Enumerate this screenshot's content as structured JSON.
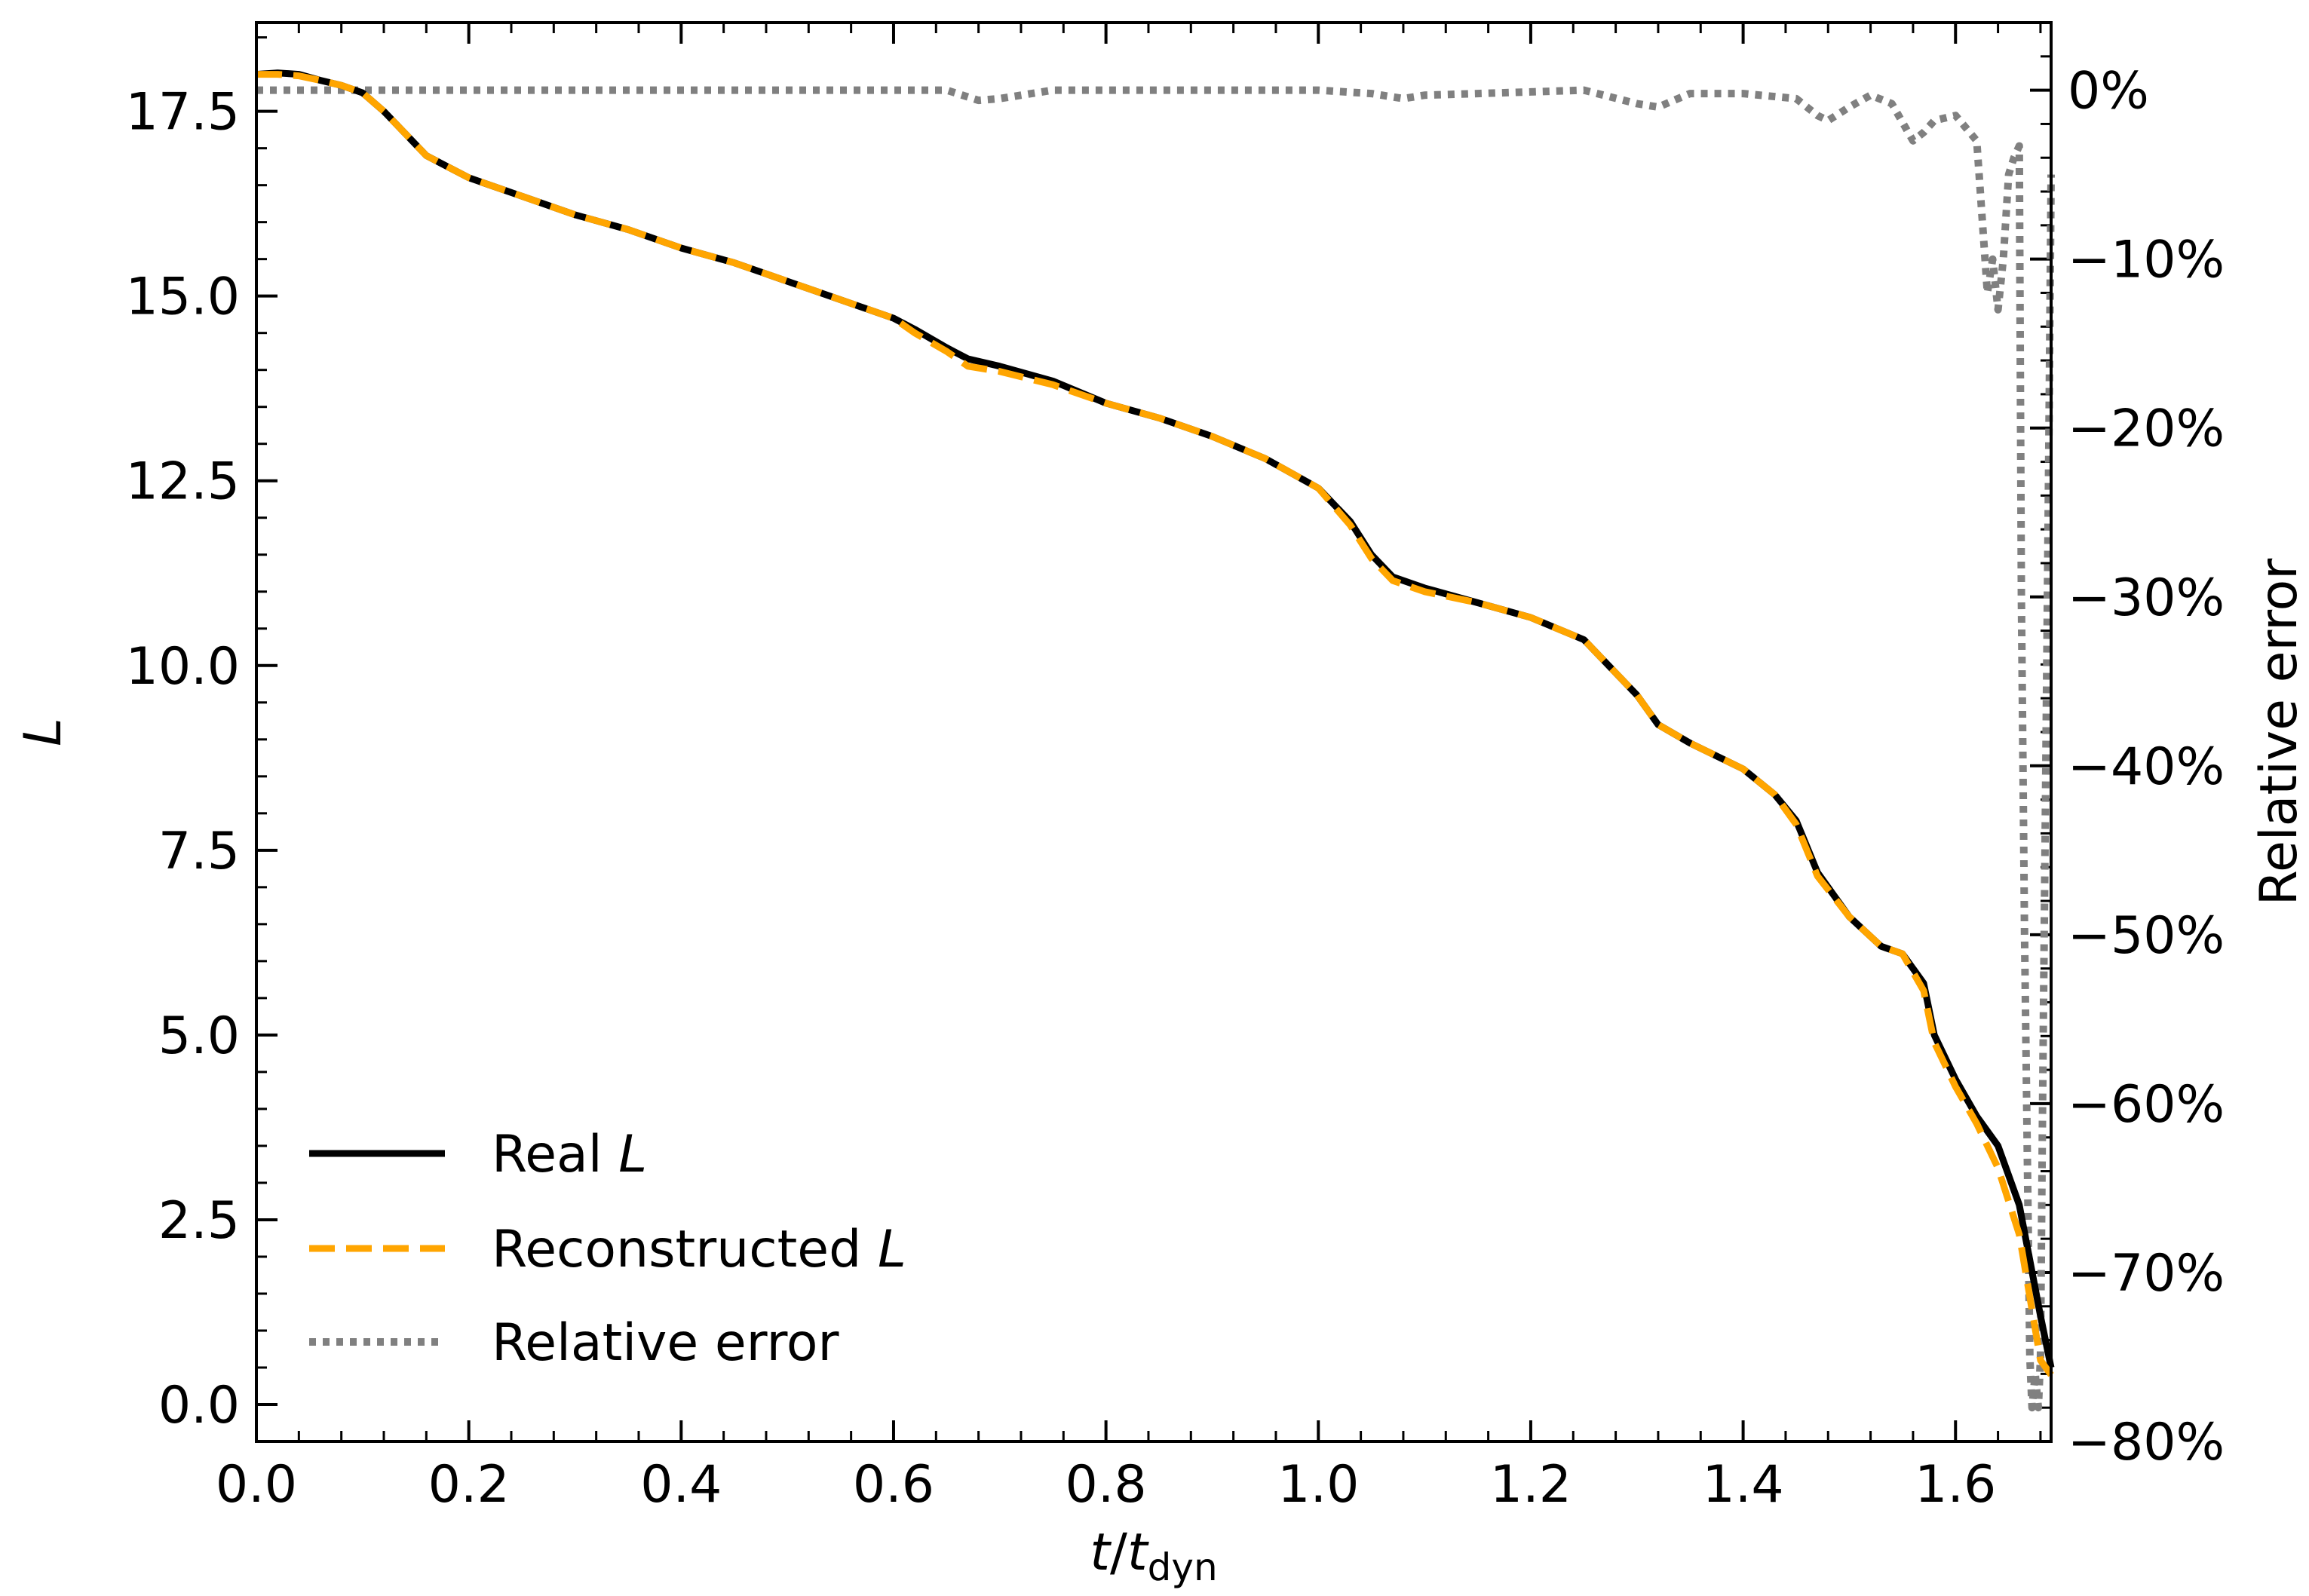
{
  "chart_data": {
    "type": "line",
    "xlabel": {
      "italic": "t",
      "sep": "/",
      "italic2": "t",
      "sub": "dyn"
    },
    "ylabel": "L",
    "y2label": "Relative error",
    "xlim": [
      0.0,
      1.69
    ],
    "ylim": [
      -0.5,
      18.7
    ],
    "y2lim": [
      -0.8,
      0.04
    ],
    "xticks": [
      {
        "value": 0.0,
        "label": "0.0"
      },
      {
        "value": 0.2,
        "label": "0.2"
      },
      {
        "value": 0.4,
        "label": "0.4"
      },
      {
        "value": 0.6,
        "label": "0.6"
      },
      {
        "value": 0.8,
        "label": "0.8"
      },
      {
        "value": 1.0,
        "label": "1.0"
      },
      {
        "value": 1.2,
        "label": "1.2"
      },
      {
        "value": 1.4,
        "label": "1.4"
      },
      {
        "value": 1.6,
        "label": "1.6"
      }
    ],
    "yticks": [
      {
        "value": 0.0,
        "label": "0.0"
      },
      {
        "value": 2.5,
        "label": "2.5"
      },
      {
        "value": 5.0,
        "label": "5.0"
      },
      {
        "value": 7.5,
        "label": "7.5"
      },
      {
        "value": 10.0,
        "label": "10.0"
      },
      {
        "value": 12.5,
        "label": "12.5"
      },
      {
        "value": 15.0,
        "label": "15.0"
      },
      {
        "value": 17.5,
        "label": "17.5"
      }
    ],
    "y2ticks": [
      {
        "value": 0.0,
        "label": "0%"
      },
      {
        "value": -0.1,
        "label": "−10%"
      },
      {
        "value": -0.2,
        "label": "−20%"
      },
      {
        "value": -0.3,
        "label": "−30%"
      },
      {
        "value": -0.4,
        "label": "−40%"
      },
      {
        "value": -0.5,
        "label": "−50%"
      },
      {
        "value": -0.6,
        "label": "−60%"
      },
      {
        "value": -0.7,
        "label": "−70%"
      },
      {
        "value": -0.8,
        "label": "−80%"
      }
    ],
    "legend": {
      "position": "lower-left",
      "entries": [
        {
          "text": "Real ",
          "italic": "L",
          "style": "solid",
          "color": "#000000"
        },
        {
          "text": "Reconstructed ",
          "italic": "L",
          "style": "dashed",
          "color": "#FFA500"
        },
        {
          "text": "Relative error",
          "italic": "",
          "style": "dotted",
          "color": "#808080"
        }
      ]
    },
    "series": [
      {
        "name": "Real L",
        "axis": "left",
        "color": "#000000",
        "style": "solid",
        "x": [
          0.0,
          0.02,
          0.04,
          0.06,
          0.08,
          0.1,
          0.12,
          0.14,
          0.16,
          0.18,
          0.2,
          0.25,
          0.3,
          0.35,
          0.4,
          0.45,
          0.5,
          0.55,
          0.6,
          0.62,
          0.65,
          0.67,
          0.7,
          0.75,
          0.8,
          0.85,
          0.9,
          0.95,
          1.0,
          1.03,
          1.05,
          1.07,
          1.1,
          1.15,
          1.2,
          1.25,
          1.27,
          1.3,
          1.32,
          1.35,
          1.4,
          1.43,
          1.45,
          1.47,
          1.5,
          1.53,
          1.55,
          1.57,
          1.58,
          1.6,
          1.62,
          1.64,
          1.66,
          1.68,
          1.69
        ],
        "y": [
          18.0,
          18.02,
          18.0,
          17.92,
          17.85,
          17.75,
          17.5,
          17.2,
          16.9,
          16.75,
          16.6,
          16.35,
          16.1,
          15.9,
          15.65,
          15.45,
          15.2,
          14.95,
          14.7,
          14.55,
          14.3,
          14.15,
          14.05,
          13.85,
          13.55,
          13.35,
          13.1,
          12.8,
          12.4,
          11.95,
          11.5,
          11.2,
          11.05,
          10.85,
          10.65,
          10.35,
          10.05,
          9.6,
          9.2,
          8.95,
          8.6,
          8.25,
          7.9,
          7.2,
          6.6,
          6.2,
          6.1,
          5.7,
          5.0,
          4.4,
          3.9,
          3.5,
          2.7,
          1.2,
          0.5
        ]
      },
      {
        "name": "Reconstructed L",
        "axis": "left",
        "color": "#FFA500",
        "style": "dashed",
        "x": [
          0.0,
          0.02,
          0.04,
          0.06,
          0.08,
          0.1,
          0.12,
          0.14,
          0.16,
          0.18,
          0.2,
          0.25,
          0.3,
          0.35,
          0.4,
          0.45,
          0.5,
          0.55,
          0.6,
          0.62,
          0.65,
          0.67,
          0.7,
          0.75,
          0.8,
          0.85,
          0.9,
          0.95,
          1.0,
          1.03,
          1.05,
          1.07,
          1.1,
          1.15,
          1.2,
          1.25,
          1.27,
          1.3,
          1.32,
          1.35,
          1.4,
          1.43,
          1.45,
          1.47,
          1.5,
          1.53,
          1.55,
          1.57,
          1.58,
          1.6,
          1.62,
          1.64,
          1.66,
          1.68,
          1.69
        ],
        "y": [
          18.0,
          18.0,
          17.98,
          17.92,
          17.85,
          17.75,
          17.5,
          17.2,
          16.9,
          16.75,
          16.6,
          16.35,
          16.1,
          15.9,
          15.65,
          15.45,
          15.2,
          14.95,
          14.7,
          14.5,
          14.25,
          14.05,
          13.98,
          13.8,
          13.55,
          13.35,
          13.1,
          12.8,
          12.4,
          11.9,
          11.45,
          11.15,
          11.0,
          10.85,
          10.65,
          10.35,
          10.05,
          9.6,
          9.2,
          8.95,
          8.6,
          8.25,
          7.85,
          7.15,
          6.6,
          6.2,
          6.1,
          5.6,
          4.9,
          4.3,
          3.8,
          3.2,
          2.3,
          0.6,
          0.4
        ]
      },
      {
        "name": "Relative error",
        "axis": "right",
        "color": "#808080",
        "style": "dotted",
        "x": [
          0.0,
          0.05,
          0.1,
          0.2,
          0.3,
          0.35,
          0.4,
          0.45,
          0.5,
          0.55,
          0.6,
          0.65,
          0.68,
          0.7,
          0.75,
          0.8,
          0.85,
          0.9,
          0.95,
          1.0,
          1.05,
          1.08,
          1.1,
          1.15,
          1.2,
          1.25,
          1.3,
          1.32,
          1.35,
          1.4,
          1.45,
          1.47,
          1.48,
          1.5,
          1.52,
          1.54,
          1.56,
          1.57,
          1.58,
          1.6,
          1.62,
          1.63,
          1.635,
          1.64,
          1.645,
          1.65,
          1.655,
          1.66,
          1.662,
          1.665,
          1.668,
          1.67,
          1.672,
          1.675,
          1.678,
          1.68,
          1.682,
          1.685,
          1.688,
          1.69
        ],
        "y": [
          0.0,
          0.0,
          0.0,
          0.0,
          0.0,
          0.0,
          0.0,
          0.0,
          0.0,
          0.0,
          0.0,
          0.0,
          -0.006,
          -0.005,
          0.0,
          0.0,
          0.0,
          0.0,
          0.0,
          0.0,
          -0.002,
          -0.005,
          -0.003,
          -0.002,
          -0.001,
          0.0,
          -0.008,
          -0.01,
          -0.002,
          -0.002,
          -0.005,
          -0.015,
          -0.018,
          -0.01,
          -0.003,
          -0.008,
          -0.03,
          -0.025,
          -0.018,
          -0.015,
          -0.03,
          -0.12,
          -0.1,
          -0.13,
          -0.1,
          -0.05,
          -0.04,
          -0.033,
          -0.3,
          -0.5,
          -0.65,
          -0.75,
          -0.78,
          -0.76,
          -0.78,
          -0.75,
          -0.6,
          -0.4,
          -0.2,
          -0.05
        ]
      }
    ]
  }
}
